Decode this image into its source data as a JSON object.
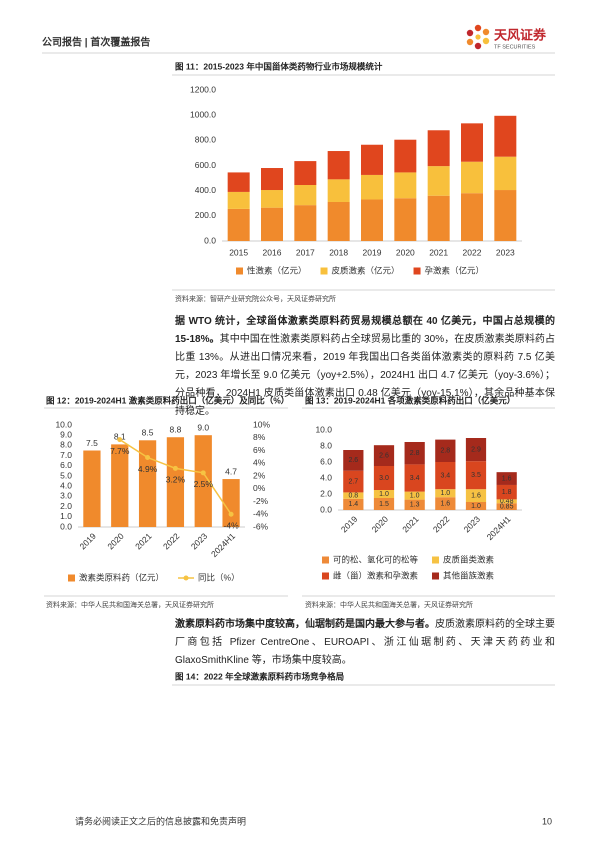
{
  "header": {
    "left": "公司报告 | 首次覆盖报告",
    "logo_text": "天风证券",
    "logo_subtext": "TF SECURITIES"
  },
  "chart_data": [
    {
      "type": "bar",
      "stacked": true,
      "title": "图 11：2015-2023 年中国甾体类药物行业市场规模统计",
      "categories": [
        "2015",
        "2016",
        "2017",
        "2018",
        "2019",
        "2020",
        "2021",
        "2022",
        "2023"
      ],
      "series": [
        {
          "name": "性激素（亿元）",
          "color": "#f08a2c",
          "values": [
            255,
            265,
            285,
            310,
            330,
            340,
            360,
            380,
            405
          ]
        },
        {
          "name": "皮质激素（亿元）",
          "color": "#f8c03c",
          "values": [
            135,
            140,
            160,
            180,
            195,
            205,
            235,
            250,
            265
          ]
        },
        {
          "name": "孕激素（亿元）",
          "color": "#e0461e",
          "values": [
            155,
            175,
            190,
            225,
            240,
            260,
            285,
            305,
            325
          ]
        }
      ],
      "ylim": [
        0,
        1200
      ],
      "yticks": [
        {
          "value": 0,
          "label": "0.0"
        },
        {
          "value": 200,
          "label": "200.0"
        },
        {
          "value": 400,
          "label": "400.0"
        },
        {
          "value": 600,
          "label": "600.0"
        },
        {
          "value": 800,
          "label": "800.0"
        },
        {
          "value": 1000,
          "label": "1000.0"
        },
        {
          "value": 1200,
          "label": "1200.0"
        }
      ],
      "grid": false,
      "legend": "bottom"
    },
    {
      "type": "combo",
      "title": "图 12：2019-2024H1 激素类原料药出口（亿美元）及同比（%）",
      "categories": [
        "2019",
        "2020",
        "2021",
        "2022",
        "2023",
        "2024H1"
      ],
      "x_label_rotation": 45,
      "series": [
        {
          "name": "激素类原料药（亿元）",
          "type": "bar",
          "color": "#f08a2c",
          "values": [
            7.5,
            8.1,
            8.5,
            8.8,
            9.0,
            4.7
          ],
          "value_labels": [
            "7.5",
            "8.1",
            "8.5",
            "8.8",
            "9.0",
            "4.7"
          ]
        },
        {
          "name": "同比（%）",
          "type": "line",
          "axis": "y2",
          "color": "#f6c343",
          "values": [
            null,
            7.7,
            4.9,
            3.2,
            2.5,
            -4
          ],
          "value_labels": [
            null,
            "7.7%",
            "4.9%",
            "3.2%",
            "2.5%",
            "-4%"
          ]
        }
      ],
      "ylim": [
        0,
        10
      ],
      "yticks": [
        {
          "value": 0,
          "label": "0.0"
        },
        {
          "value": 1,
          "label": "1.0"
        },
        {
          "value": 2,
          "label": "2.0"
        },
        {
          "value": 3,
          "label": "3.0"
        },
        {
          "value": 4,
          "label": "4.0"
        },
        {
          "value": 5,
          "label": "5.0"
        },
        {
          "value": 6,
          "label": "6.0"
        },
        {
          "value": 7,
          "label": "7.0"
        },
        {
          "value": 8,
          "label": "8.0"
        },
        {
          "value": 9,
          "label": "9.0"
        },
        {
          "value": 10,
          "label": "10.0"
        }
      ],
      "y2lim": [
        -6,
        10
      ],
      "y2ticks": [
        {
          "value": -6,
          "label": "-6%"
        },
        {
          "value": -4,
          "label": "-4%"
        },
        {
          "value": -2,
          "label": "-2%"
        },
        {
          "value": 0,
          "label": "0%"
        },
        {
          "value": 2,
          "label": "2%"
        },
        {
          "value": 4,
          "label": "4%"
        },
        {
          "value": 6,
          "label": "6%"
        },
        {
          "value": 8,
          "label": "8%"
        },
        {
          "value": 10,
          "label": "10%"
        }
      ],
      "grid": false,
      "legend": "bottom"
    },
    {
      "type": "bar",
      "stacked": true,
      "title": "图 13：2019-2024H1 各项激素类原料药出口（亿美元）",
      "categories": [
        "2019",
        "2020",
        "2021",
        "2022",
        "2023",
        "2024H1"
      ],
      "x_label_rotation": 45,
      "series": [
        {
          "name": "可的松、氢化可的松等",
          "color": "#ee8a38",
          "values": [
            1.4,
            1.5,
            1.3,
            1.6,
            1.0,
            0.85
          ],
          "value_labels": [
            "1.4",
            "1.5",
            "1.3",
            "1.6",
            "1.0",
            "0.85"
          ]
        },
        {
          "name": "皮质甾类激素",
          "color": "#f6c243",
          "values": [
            0.8,
            1.0,
            1.0,
            1.0,
            1.6,
            0.48
          ],
          "value_labels": [
            "0.8",
            "1.0",
            "1.0",
            "1.0",
            "1.6",
            "0.48"
          ]
        },
        {
          "name": "雌（甾）激素和孕激素",
          "color": "#d9461f",
          "values": [
            2.7,
            3.0,
            3.4,
            3.4,
            3.5,
            1.8
          ],
          "value_labels": [
            "2.7",
            "3.0",
            "3.4",
            "3.4",
            "3.5",
            "1.8"
          ]
        },
        {
          "name": "其他甾族激素",
          "color": "#a52a1c",
          "values": [
            2.6,
            2.6,
            2.8,
            2.8,
            2.9,
            1.6
          ],
          "value_labels": [
            "2.6",
            "2.6",
            "2.8",
            "2.8",
            "2.9",
            "1.6"
          ]
        }
      ],
      "ylim": [
        0,
        10
      ],
      "yticks": [
        {
          "value": 0,
          "label": "0.0"
        },
        {
          "value": 2,
          "label": "2.0"
        },
        {
          "value": 4,
          "label": "4.0"
        },
        {
          "value": 6,
          "label": "6.0"
        },
        {
          "value": 8,
          "label": "8.0"
        },
        {
          "value": 10,
          "label": "10.0"
        }
      ],
      "grid": false,
      "legend": "bottom"
    }
  ],
  "sources": [
    "资料来源：智研产业研究院公众号，天风证券研究所",
    "资料来源：中华人民共和国海关总署，天风证券研究所",
    "资料来源：中华人民共和国海关总署，天风证券研究所"
  ],
  "paragraphs": [
    {
      "bold": "据 WTO 统计，全球甾体激素类原料药贸易规模总额在 40 亿美元，中国占总规模的 15-18%。",
      "text": "其中中国在性激素类原料药占全球贸易比重的 30%，在皮质激素类原料药占比重 13%。从进出口情况来看，2019 年我国出口各类甾体激素类的原料药 7.5 亿美元，2023 年增长至 9.0 亿美元（yoy+2.5%），2024H1 出口 4.7 亿美元（yoy-3.6%）；分品种看，2024H1 皮质类甾体激素出口 0.48 亿美元（yoy-15.1%），其余品种基本保持稳定。"
    },
    {
      "bold": "激素原料药市场集中度较高，仙琚制药是国内最大参与者。",
      "text": "皮质激素原料药的全球主要厂商包括 Pfizer CentreOne、EUROAPI、浙江仙琚制药、天津天药药业和 GlaxoSmithKline 等，市场集中度较高。"
    }
  ],
  "figure_14": {
    "title": "图 14：2022 年全球激素原料药市场竞争格局"
  },
  "footer": {
    "disclaimer": "请务必阅读正文之后的信息披露和免责声明",
    "page": "10"
  }
}
